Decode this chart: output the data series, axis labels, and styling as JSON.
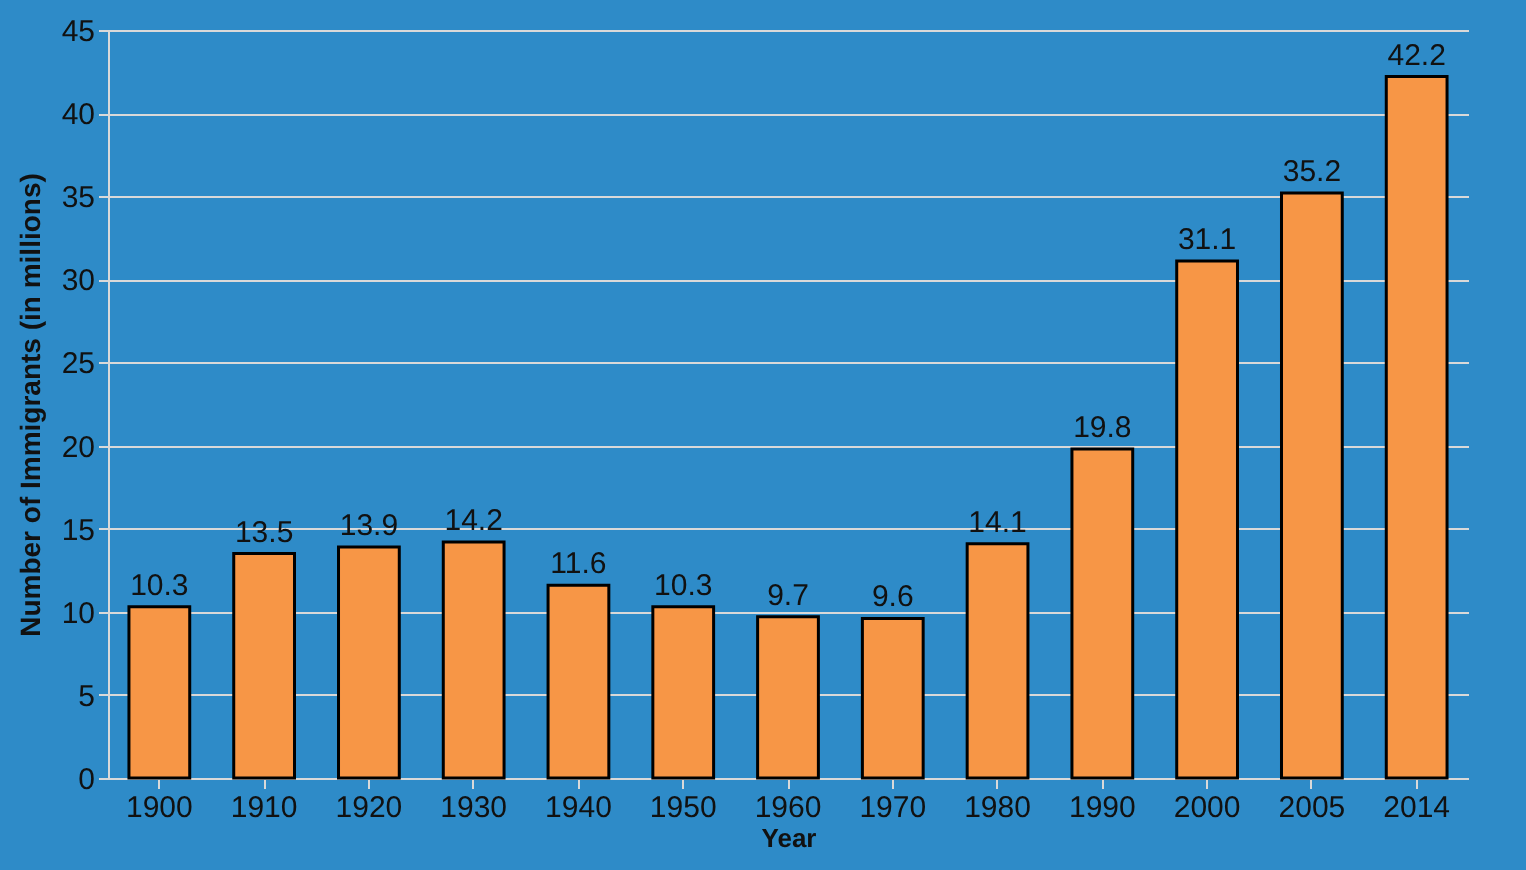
{
  "chart_data": {
    "type": "bar",
    "xlabel": "Year",
    "ylabel": "Number of Immigrants  (in millions)",
    "categories": [
      "1900",
      "1910",
      "1920",
      "1930",
      "1940",
      "1950",
      "1960",
      "1970",
      "1980",
      "1990",
      "2000",
      "2005",
      "2014"
    ],
    "values": [
      10.3,
      13.5,
      13.9,
      14.2,
      11.6,
      10.3,
      9.7,
      9.6,
      14.1,
      19.8,
      31.1,
      35.2,
      42.2
    ],
    "color": "#f79646",
    "ylim": [
      0,
      45
    ],
    "yticks": [
      0,
      5,
      10,
      15,
      20,
      25,
      30,
      35,
      40,
      45
    ],
    "grid": "y",
    "data_labels": true
  }
}
